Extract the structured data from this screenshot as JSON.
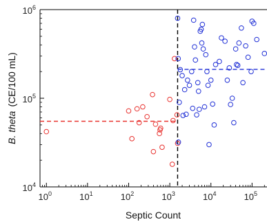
{
  "chart_data": {
    "type": "scatter",
    "title": "",
    "xlabel": "Septic Count",
    "ylabel_italic": "B. theta",
    "ylabel_unit": "(CE/100 mL)",
    "xscale": "log",
    "yscale": "log",
    "xlim": [
      0.7,
      240000
    ],
    "ylim": [
      10000,
      1000000
    ],
    "x_ticks": [
      {
        "value": 1,
        "base": "10",
        "exp": "0"
      },
      {
        "value": 10,
        "base": "10",
        "exp": "1"
      },
      {
        "value": 100,
        "base": "10",
        "exp": "2"
      },
      {
        "value": 1000,
        "base": "10",
        "exp": "3"
      },
      {
        "value": 10000,
        "base": "10",
        "exp": "4"
      },
      {
        "value": 100000,
        "base": "10",
        "exp": "5"
      }
    ],
    "y_ticks": [
      {
        "value": 10000,
        "base": "10",
        "exp": "4"
      },
      {
        "value": 100000,
        "base": "10",
        "exp": "5"
      },
      {
        "value": 1000000,
        "base": "10",
        "exp": "6"
      }
    ],
    "grid": false,
    "legend": "none",
    "reference_lines": [
      {
        "orientation": "vertical",
        "value": 1550,
        "from": 10000,
        "to": 1000000,
        "color": "#000000",
        "style": "dashed"
      },
      {
        "orientation": "horizontal",
        "value": 55000,
        "from": 0.7,
        "to": 1550,
        "color": "#e8322f",
        "style": "dashed"
      },
      {
        "orientation": "horizontal",
        "value": 212000,
        "from": 1550,
        "to": 240000,
        "color": "#1f2fd6",
        "style": "dashed"
      }
    ],
    "series": [
      {
        "color": "#e8322f",
        "marker": "open-circle",
        "points": [
          [
            1,
            42000
          ],
          [
            100,
            72000
          ],
          [
            120,
            35000
          ],
          [
            160,
            76000
          ],
          [
            180,
            53000
          ],
          [
            220,
            80000
          ],
          [
            280,
            62000
          ],
          [
            380,
            110000
          ],
          [
            400,
            25000
          ],
          [
            450,
            51000
          ],
          [
            560,
            40000
          ],
          [
            580,
            44000
          ],
          [
            600,
            46000
          ],
          [
            650,
            28000
          ],
          [
            1000,
            97000
          ],
          [
            1150,
            18000
          ],
          [
            1200,
            56000
          ],
          [
            1300,
            280000
          ],
          [
            1500,
            65000
          ],
          [
            1550,
            31000
          ]
        ]
      },
      {
        "color": "#1f2fd6",
        "marker": "open-circle",
        "points": [
          [
            1550,
            800000
          ],
          [
            1600,
            280000
          ],
          [
            1620,
            32000
          ],
          [
            1700,
            90000
          ],
          [
            1800,
            210000
          ],
          [
            2000,
            180000
          ],
          [
            2100,
            64000
          ],
          [
            2300,
            125000
          ],
          [
            2500,
            66000
          ],
          [
            2700,
            160000
          ],
          [
            3000,
            140000
          ],
          [
            3400,
            200000
          ],
          [
            3600,
            77000
          ],
          [
            3800,
            760000
          ],
          [
            4000,
            380000
          ],
          [
            4200,
            270000
          ],
          [
            4500,
            65000
          ],
          [
            4800,
            150000
          ],
          [
            5000,
            120000
          ],
          [
            5200,
            75000
          ],
          [
            5500,
            570000
          ],
          [
            5800,
            600000
          ],
          [
            6000,
            420000
          ],
          [
            6200,
            680000
          ],
          [
            6500,
            360000
          ],
          [
            7000,
            80000
          ],
          [
            7500,
            310000
          ],
          [
            8000,
            200000
          ],
          [
            8500,
            140000
          ],
          [
            9000,
            30000
          ],
          [
            10000,
            160000
          ],
          [
            11000,
            86000
          ],
          [
            12000,
            50000
          ],
          [
            13000,
            240000
          ],
          [
            16000,
            260000
          ],
          [
            18000,
            480000
          ],
          [
            22000,
            440000
          ],
          [
            25000,
            160000
          ],
          [
            28000,
            220000
          ],
          [
            30000,
            85000
          ],
          [
            33000,
            100000
          ],
          [
            36000,
            53000
          ],
          [
            40000,
            360000
          ],
          [
            42000,
            240000
          ],
          [
            45000,
            235000
          ],
          [
            48000,
            420000
          ],
          [
            55000,
            620000
          ],
          [
            60000,
            150000
          ],
          [
            70000,
            390000
          ],
          [
            80000,
            290000
          ],
          [
            95000,
            200000
          ],
          [
            100000,
            740000
          ],
          [
            110000,
            700000
          ],
          [
            130000,
            460000
          ],
          [
            200000,
            320000
          ]
        ]
      }
    ]
  }
}
